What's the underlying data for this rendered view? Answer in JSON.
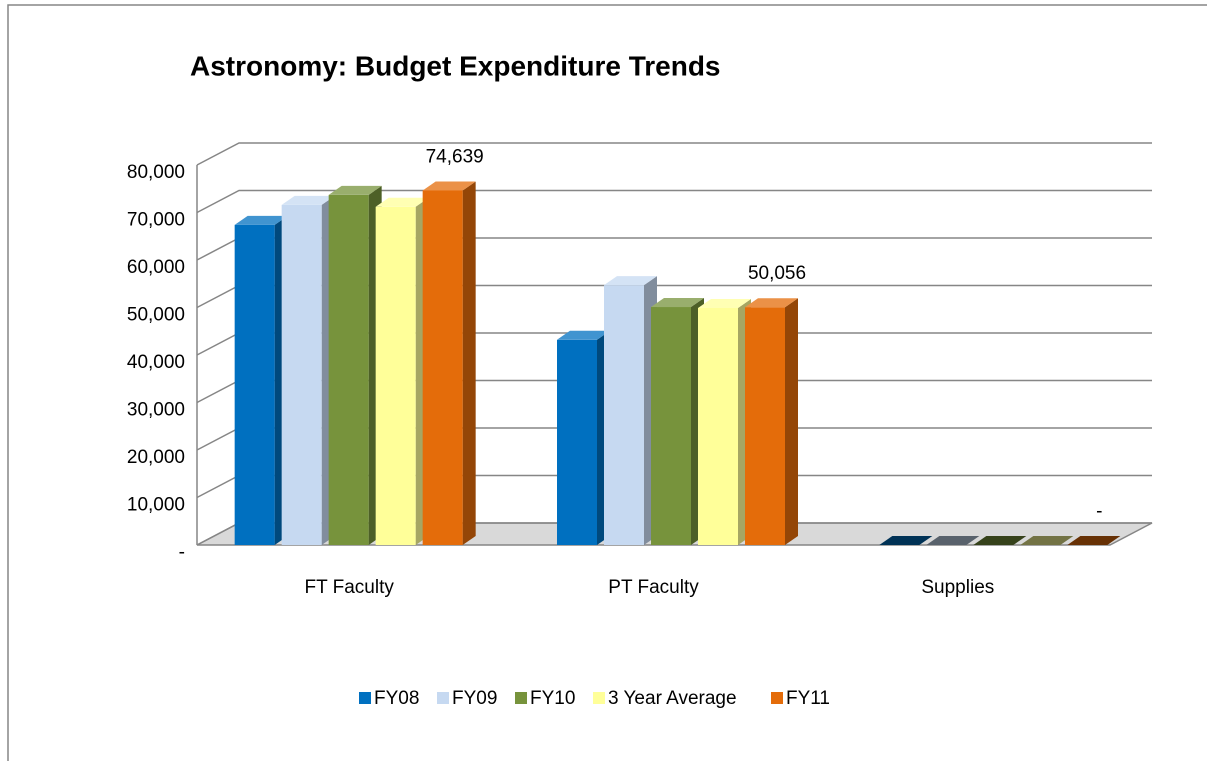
{
  "chart_data": {
    "type": "bar3d",
    "title": "Astronomy: Budget Expenditure Trends",
    "categories": [
      "FT Faculty",
      "PT Faculty",
      "Supplies"
    ],
    "series": [
      {
        "name": "FY08",
        "color": "#0070c0",
        "values": [
          67400,
          43200,
          0
        ]
      },
      {
        "name": "FY09",
        "color": "#c6d9f1",
        "values": [
          71600,
          54700,
          0
        ]
      },
      {
        "name": "FY10",
        "color": "#77933c",
        "values": [
          73700,
          50100,
          0
        ]
      },
      {
        "name": "3 Year Average",
        "color": "#ffff99",
        "values": [
          71200,
          49900,
          0
        ]
      },
      {
        "name": "FY11",
        "color": "#e46c0a",
        "values": [
          74639,
          50056,
          0
        ],
        "value_labels": [
          "74,639",
          "50,056",
          "-"
        ]
      }
    ],
    "ylim": [
      0,
      80000
    ],
    "yticks": [
      {
        "value": 0,
        "label": "-"
      },
      {
        "value": 10000,
        "label": "10,000"
      },
      {
        "value": 20000,
        "label": "20,000"
      },
      {
        "value": 30000,
        "label": "30,000"
      },
      {
        "value": 40000,
        "label": "40,000"
      },
      {
        "value": 50000,
        "label": "50,000"
      },
      {
        "value": 60000,
        "label": "60,000"
      },
      {
        "value": 70000,
        "label": "70,000"
      },
      {
        "value": 80000,
        "label": "80,000"
      }
    ],
    "grid": true,
    "legend": "bottom"
  }
}
